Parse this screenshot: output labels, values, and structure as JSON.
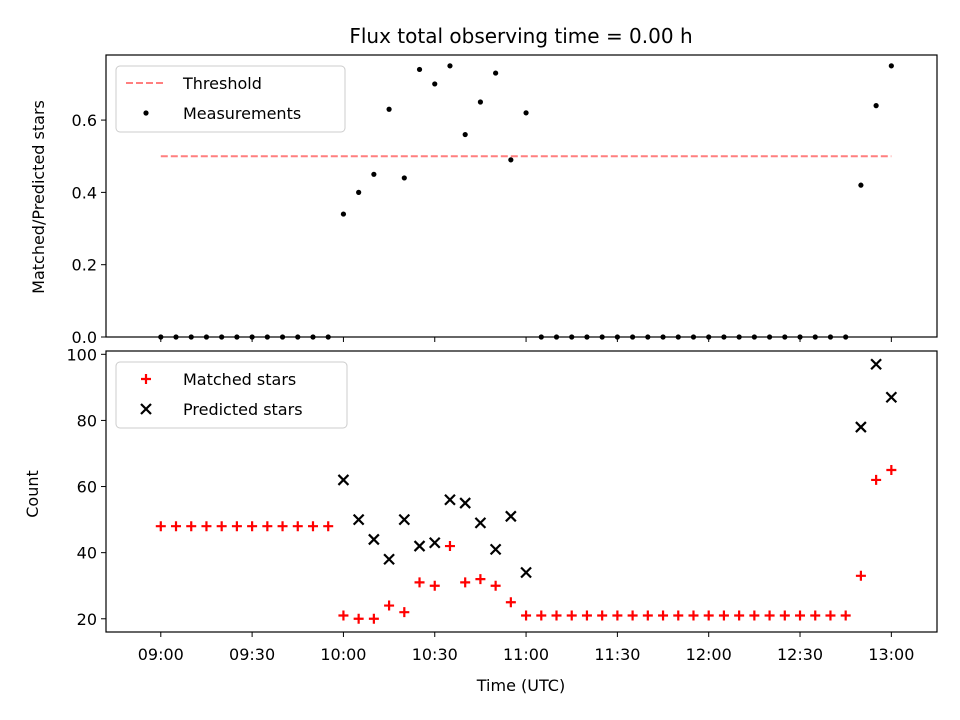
{
  "chart_data": [
    {
      "type": "scatter",
      "title": "Flux total observing time = 0.00 h",
      "ylabel": "Matched/Predicted stars",
      "ylim": [
        0,
        0.78
      ],
      "yticks": [
        "0.0",
        "0.2",
        "0.4",
        "0.6"
      ],
      "legend": "top-left",
      "threshold": {
        "name": "Threshold",
        "value": 0.5,
        "x_start": "09:00",
        "x_end": "13:00",
        "color": "#ff7f7f",
        "style": "dashed"
      },
      "series": [
        {
          "name": "Measurements",
          "color": "#000000",
          "marker": "dot",
          "x": [
            "09:00",
            "09:05",
            "09:10",
            "09:15",
            "09:20",
            "09:25",
            "09:30",
            "09:35",
            "09:40",
            "09:45",
            "09:50",
            "09:55",
            "10:00",
            "10:05",
            "10:10",
            "10:15",
            "10:20",
            "10:25",
            "10:30",
            "10:35",
            "10:40",
            "10:45",
            "10:50",
            "10:55",
            "11:00",
            "11:05",
            "11:10",
            "11:15",
            "11:20",
            "11:25",
            "11:30",
            "11:35",
            "11:40",
            "11:45",
            "11:50",
            "11:55",
            "12:00",
            "12:05",
            "12:10",
            "12:15",
            "12:20",
            "12:25",
            "12:30",
            "12:35",
            "12:40",
            "12:45",
            "12:50",
            "12:55",
            "13:00"
          ],
          "y": [
            0,
            0,
            0,
            0,
            0,
            0,
            0,
            0,
            0,
            0,
            0,
            0,
            0.34,
            0.4,
            0.45,
            0.63,
            0.44,
            0.74,
            0.7,
            0.75,
            0.56,
            0.65,
            0.73,
            0.49,
            0.62,
            0,
            0,
            0,
            0,
            0,
            0,
            0,
            0,
            0,
            0,
            0,
            0,
            0,
            0,
            0,
            0,
            0,
            0,
            0,
            0,
            0,
            0.42,
            0.64,
            0.75
          ]
        }
      ]
    },
    {
      "type": "scatter",
      "xlabel": "Time (UTC)",
      "ylabel": "Count",
      "ylim": [
        16,
        101
      ],
      "yticks": [
        "20",
        "40",
        "60",
        "80",
        "100"
      ],
      "xticks": [
        "09:00",
        "09:30",
        "10:00",
        "10:30",
        "11:00",
        "11:30",
        "12:00",
        "12:30",
        "13:00"
      ],
      "legend": "top-left",
      "series": [
        {
          "name": "Matched stars",
          "color": "#ff0000",
          "marker": "plus",
          "x": [
            "09:00",
            "09:05",
            "09:10",
            "09:15",
            "09:20",
            "09:25",
            "09:30",
            "09:35",
            "09:40",
            "09:45",
            "09:50",
            "09:55",
            "10:00",
            "10:05",
            "10:10",
            "10:15",
            "10:20",
            "10:25",
            "10:30",
            "10:35",
            "10:40",
            "10:45",
            "10:50",
            "10:55",
            "11:00",
            "11:05",
            "11:10",
            "11:15",
            "11:20",
            "11:25",
            "11:30",
            "11:35",
            "11:40",
            "11:45",
            "11:50",
            "11:55",
            "12:00",
            "12:05",
            "12:10",
            "12:15",
            "12:20",
            "12:25",
            "12:30",
            "12:35",
            "12:40",
            "12:45",
            "12:50",
            "12:55",
            "13:00"
          ],
          "y": [
            48,
            48,
            48,
            48,
            48,
            48,
            48,
            48,
            48,
            48,
            48,
            48,
            21,
            20,
            20,
            24,
            22,
            31,
            30,
            42,
            31,
            32,
            30,
            25,
            21,
            21,
            21,
            21,
            21,
            21,
            21,
            21,
            21,
            21,
            21,
            21,
            21,
            21,
            21,
            21,
            21,
            21,
            21,
            21,
            21,
            21,
            33,
            62,
            65
          ]
        },
        {
          "name": "Predicted stars",
          "color": "#000000",
          "marker": "x",
          "x": [
            "10:00",
            "10:05",
            "10:10",
            "10:15",
            "10:20",
            "10:25",
            "10:30",
            "10:35",
            "10:40",
            "10:45",
            "10:50",
            "10:55",
            "11:00",
            "12:50",
            "12:55",
            "13:00"
          ],
          "y": [
            62,
            50,
            44,
            38,
            50,
            42,
            43,
            56,
            55,
            49,
            41,
            51,
            34,
            78,
            97,
            87
          ]
        }
      ]
    }
  ]
}
